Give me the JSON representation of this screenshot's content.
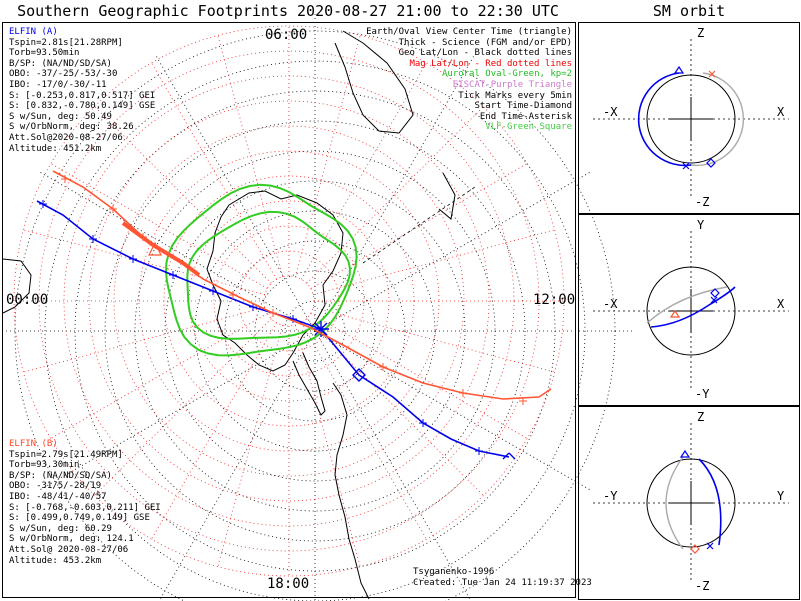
{
  "title": "Southern Geographic Footprints 2020-08-27 21:00 to 22:30 UTC",
  "sm_title": "SM orbit",
  "colors": {
    "elfin_a": "#0000ee",
    "elfin_b": "#ff5533",
    "aurora": "#33cc22",
    "mag_grid": "#ee2222",
    "eiscat": "#cc66cc"
  },
  "map": {
    "time_labels": {
      "top": "06:00",
      "left": "00:00",
      "right": "12:00",
      "bottom": "18:00"
    },
    "elfin_a": {
      "name": "ELFIN (A)",
      "lines": [
        "Tspin=2.81s[21.28RPM]",
        "Torb=93.50min",
        "B/SP: (NA/ND/SD/SA)",
        "OBO: -37/-25/-53/-30",
        "IBO: -17/0/-30/-11",
        "S: [-0.253,0.817,0.517] GEI",
        "S: [0.832,-0.780,0.149] GSE",
        "S w/Sun, deg: 50.49",
        "S w/OrbNorm, deg: 38.26",
        "Att.Sol@2020-08-27/06",
        "Altitude: 451.2km"
      ]
    },
    "elfin_b": {
      "name": "ELFIN (B)",
      "lines": [
        "Tspin=2.79s[21.49RPM]",
        "Torb=93.30min",
        "B/SP: (NA/ND/SD/SA)",
        "OBO: -31/5/-28/19",
        "IBO: -48/41/-40/57",
        "S: [-0.768,-0.603,0.211] GEI",
        "S: [0.499,0.749,0.149] GSE",
        "S w/Sun, deg: 60.29",
        "S w/OrbNorm, deg: 124.1",
        "Att.Sol@ 2020-08-27/06",
        "Altitude: 453.2km"
      ]
    },
    "legend": [
      {
        "text": "Earth/Oval View Center Time (triangle)",
        "color": "#000000"
      },
      {
        "text": "Thick - Science (FGM and/or EPD)",
        "color": "#000000"
      },
      {
        "text": "Geo Lat/Lon - Black dotted lines",
        "color": "#000000"
      },
      {
        "text": "Mag Lat/Lon - Red dotted lines",
        "color": "#ee0000"
      },
      {
        "text": "Auroral Oval-Green, kp=2",
        "color": "#22bb22"
      },
      {
        "text": "EISCAT-Purple Triangle",
        "color": "#cc77cc"
      },
      {
        "text": "Tick Marks every 5min",
        "color": "#000000"
      },
      {
        "text": "Start Time-Diamond",
        "color": "#000000"
      },
      {
        "text": "End Time-Asterisk",
        "color": "#000000"
      },
      {
        "text": "VLF-Green Square",
        "color": "#44cc44"
      }
    ],
    "footer": {
      "model": "Tsyganenko-1996",
      "created": "Created: Tue Jan 24 11:19:37 2023"
    }
  },
  "sm_panels": [
    {
      "top": "Z",
      "bottom": "-Z",
      "left": "-X",
      "right": "X"
    },
    {
      "top": "Y",
      "bottom": "-Y",
      "left": "-X",
      "right": "X"
    },
    {
      "top": "Z",
      "bottom": "-Z",
      "left": "-Y",
      "right": "Y"
    }
  ]
}
